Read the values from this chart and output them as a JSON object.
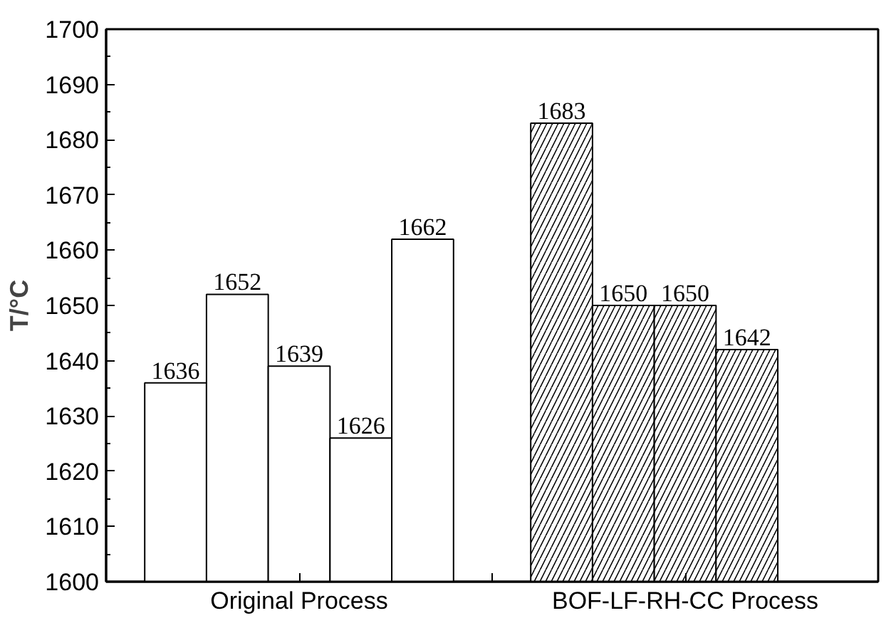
{
  "chart_data": {
    "type": "bar",
    "ylabel": "T/°C",
    "categories": [
      "Original Process",
      "BOF-LF-RH-CC Process"
    ],
    "series": [
      {
        "color": "#ffffff",
        "values": [
          1636,
          1683
        ]
      },
      {
        "color": "#ffffff",
        "values": [
          1652,
          1650
        ]
      },
      {
        "color": "#ffffff",
        "values": [
          1639,
          1650
        ]
      },
      {
        "color": "#ffffff",
        "values": [
          1626,
          1642
        ]
      },
      {
        "color": "#ffffff",
        "values": [
          1662,
          null
        ]
      }
    ],
    "ylim": [
      1600,
      1700
    ],
    "yticks": [
      1600,
      1610,
      1620,
      1630,
      1640,
      1650,
      1660,
      1670,
      1680,
      1690,
      1700
    ],
    "data_labels": true
  }
}
